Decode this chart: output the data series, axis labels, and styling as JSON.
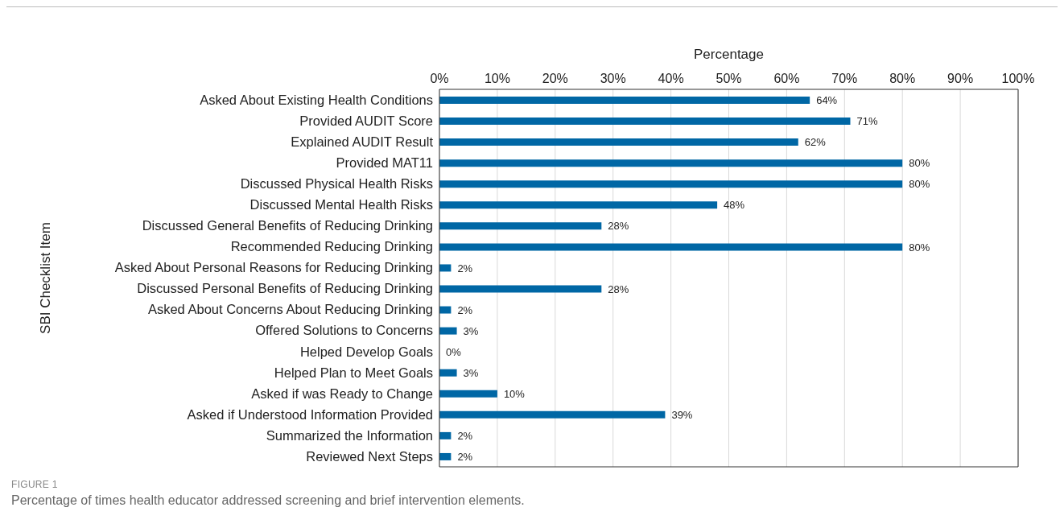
{
  "chart_data": {
    "type": "bar",
    "orientation": "horizontal",
    "xlabel": "Percentage",
    "ylabel": "SBI Checklist Item",
    "categories": [
      "Asked About Existing Health Conditions",
      "Provided AUDIT Score",
      "Explained AUDIT Result",
      "Provided MAT11",
      "Discussed Physical Health Risks",
      "Discussed Mental Health Risks",
      "Discussed General Benefits of Reducing Drinking",
      "Recommended Reducing Drinking",
      "Asked About Personal Reasons for Reducing Drinking",
      "Discussed Personal Benefits of Reducing Drinking",
      "Asked About Concerns About Reducing Drinking",
      "Offered Solutions to Concerns",
      "Helped Develop Goals",
      "Helped Plan to Meet Goals",
      "Asked if was Ready to Change",
      "Asked if Understood Information Provided",
      "Summarized the Information",
      "Reviewed Next Steps"
    ],
    "values": [
      64,
      71,
      62,
      80,
      80,
      48,
      28,
      80,
      2,
      28,
      2,
      3,
      0,
      3,
      10,
      39,
      2,
      2
    ],
    "value_labels": [
      "64%",
      "71%",
      "62%",
      "80%",
      "80%",
      "48%",
      "28%",
      "80%",
      "2%",
      "28%",
      "2%",
      "3%",
      "0%",
      "3%",
      "10%",
      "39%",
      "2%",
      "2%"
    ],
    "color": "#0067a5",
    "xlim": [
      0,
      100
    ],
    "xticks": [
      {
        "value": 0,
        "label": "0%"
      },
      {
        "value": 10,
        "label": "10%"
      },
      {
        "value": 20,
        "label": "20%"
      },
      {
        "value": 30,
        "label": "30%"
      },
      {
        "value": 40,
        "label": "40%"
      },
      {
        "value": 50,
        "label": "50%"
      },
      {
        "value": 60,
        "label": "60%"
      },
      {
        "value": 70,
        "label": "70%"
      },
      {
        "value": 80,
        "label": "80%"
      },
      {
        "value": 90,
        "label": "90%"
      },
      {
        "value": 100,
        "label": "100%"
      }
    ],
    "grid": "x",
    "annotations": [
      "FIGURE 1",
      "Percentage of times health educator addressed screening and brief intervention elements."
    ]
  }
}
